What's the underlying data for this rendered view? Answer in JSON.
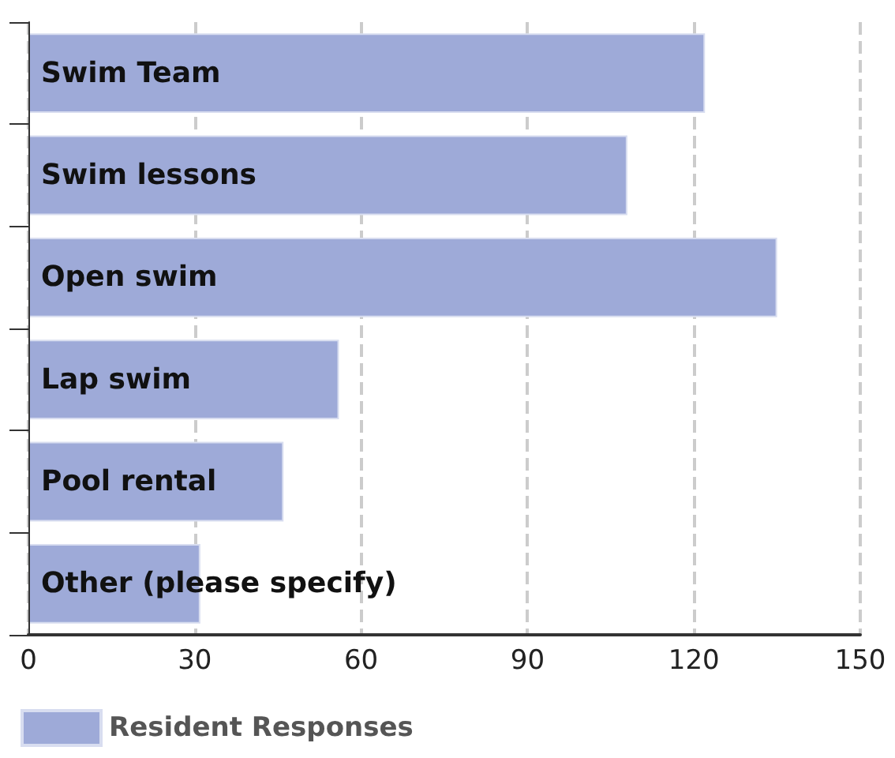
{
  "chart_data": {
    "type": "bar",
    "orientation": "horizontal",
    "categories": [
      "Swim Team",
      "Swim lessons",
      "Open swim",
      "Lap swim",
      "Pool rental",
      "Other (please specify)"
    ],
    "series": [
      {
        "name": "Resident Responses",
        "color": "#9eaad8",
        "values": [
          122,
          108,
          135,
          56,
          46,
          31
        ]
      }
    ],
    "xlim": [
      0,
      150
    ],
    "xticks": [
      0,
      30,
      60,
      90,
      120,
      150
    ],
    "grid": "x",
    "legend": "bottom left"
  }
}
